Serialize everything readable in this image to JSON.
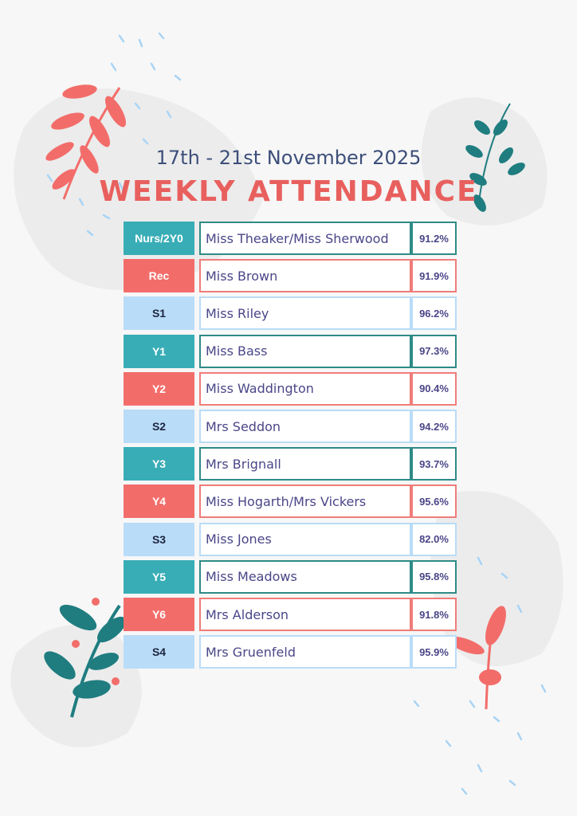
{
  "header": {
    "date_range": "17th - 21st November 2025",
    "title": "WEEKLY ATTENDANCE"
  },
  "colors": {
    "teal": "#38adb6",
    "coral": "#f26d6a",
    "light_blue": "#b9dcf8",
    "text": "#4a4688"
  },
  "rows": [
    {
      "class": "Nurs/2Y0",
      "teacher": "Miss Theaker/Miss Sherwood",
      "attendance": "91.2%",
      "theme": "teal"
    },
    {
      "class": "Rec",
      "teacher": "Miss Brown",
      "attendance": "91.9%",
      "theme": "coral"
    },
    {
      "class": "S1",
      "teacher": "Miss Riley",
      "attendance": "96.2%",
      "theme": "blue"
    },
    {
      "class": "Y1",
      "teacher": "Miss Bass",
      "attendance": "97.3%",
      "theme": "teal"
    },
    {
      "class": "Y2",
      "teacher": "Miss Waddington",
      "attendance": "90.4%",
      "theme": "coral"
    },
    {
      "class": "S2",
      "teacher": "Mrs Seddon",
      "attendance": "94.2%",
      "theme": "blue"
    },
    {
      "class": "Y3",
      "teacher": "Mrs Brignall",
      "attendance": "93.7%",
      "theme": "teal"
    },
    {
      "class": "Y4",
      "teacher": "Miss Hogarth/Mrs Vickers",
      "attendance": "95.6%",
      "theme": "coral"
    },
    {
      "class": "S3",
      "teacher": "Miss Jones",
      "attendance": "82.0%",
      "theme": "blue"
    },
    {
      "class": "Y5",
      "teacher": "Miss Meadows",
      "attendance": "95.8%",
      "theme": "teal"
    },
    {
      "class": "Y6",
      "teacher": "Mrs Alderson",
      "attendance": "91.8%",
      "theme": "coral"
    },
    {
      "class": "S4",
      "teacher": "Mrs Gruenfeld",
      "attendance": "95.9%",
      "theme": "blue"
    }
  ]
}
